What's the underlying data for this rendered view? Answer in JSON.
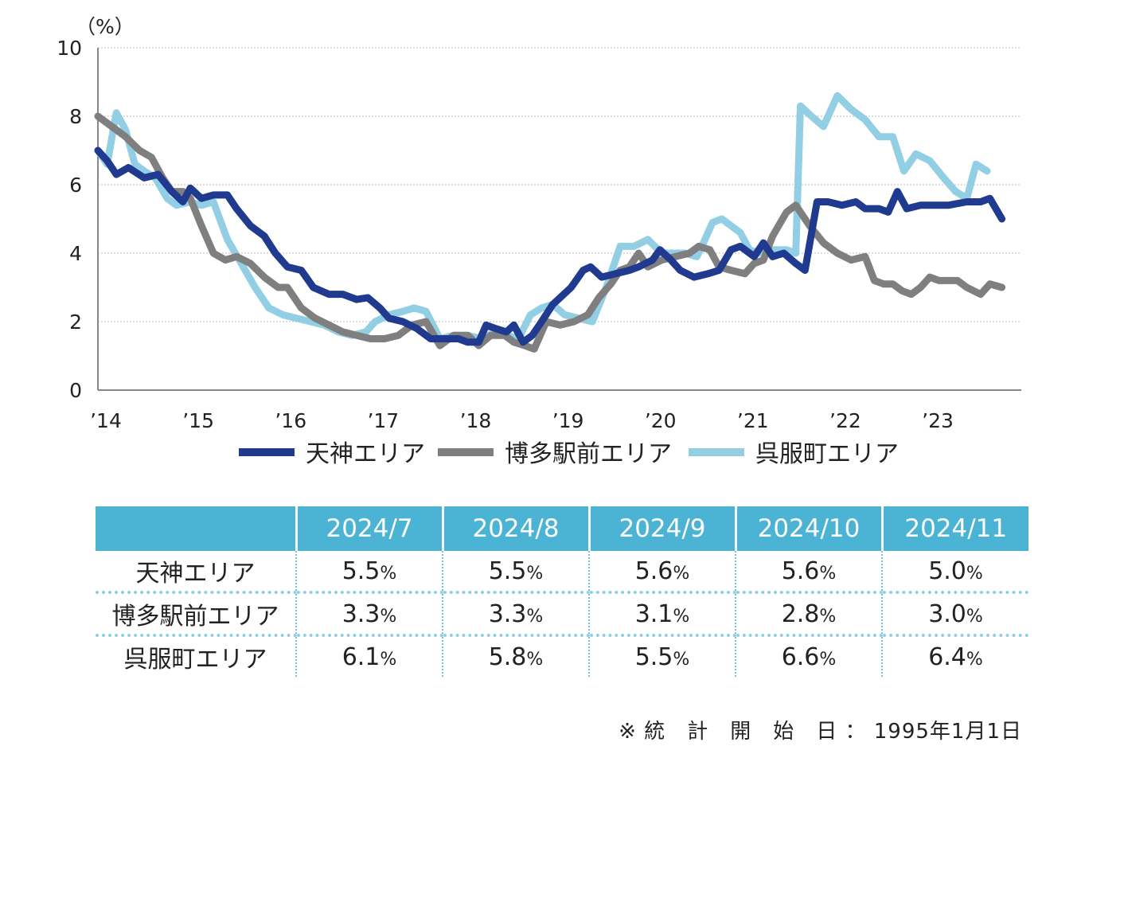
{
  "chart_data": {
    "type": "line",
    "unit_label": "（%）",
    "ylim": [
      0,
      10
    ],
    "yticks": [
      0,
      2,
      4,
      6,
      8,
      10
    ],
    "xlim": [
      2014.0,
      2023.99
    ],
    "xticks": [
      {
        "value": 2014,
        "label": "’14"
      },
      {
        "value": 2015,
        "label": "’15"
      },
      {
        "value": 2016,
        "label": "’16"
      },
      {
        "value": 2017,
        "label": "’17"
      },
      {
        "value": 2018,
        "label": "’18"
      },
      {
        "value": 2019,
        "label": "’19"
      },
      {
        "value": 2020,
        "label": "’20"
      },
      {
        "value": 2021,
        "label": "’21"
      },
      {
        "value": 2022,
        "label": "’22"
      },
      {
        "value": 2023,
        "label": "’23"
      }
    ],
    "grid": true,
    "legend_position": "bottom",
    "series": [
      {
        "name": "天神エリア",
        "color": "#1f3a8f",
        "points": [
          [
            2014.0,
            7.0
          ],
          [
            2014.1,
            6.7
          ],
          [
            2014.2,
            6.3
          ],
          [
            2014.33,
            6.5
          ],
          [
            2014.5,
            6.2
          ],
          [
            2014.65,
            6.3
          ],
          [
            2014.8,
            5.8
          ],
          [
            2014.92,
            5.5
          ],
          [
            2015.0,
            5.9
          ],
          [
            2015.12,
            5.6
          ],
          [
            2015.25,
            5.7
          ],
          [
            2015.4,
            5.7
          ],
          [
            2015.5,
            5.3
          ],
          [
            2015.65,
            4.8
          ],
          [
            2015.8,
            4.5
          ],
          [
            2015.92,
            4.0
          ],
          [
            2016.05,
            3.6
          ],
          [
            2016.2,
            3.5
          ],
          [
            2016.33,
            3.0
          ],
          [
            2016.5,
            2.8
          ],
          [
            2016.65,
            2.8
          ],
          [
            2016.8,
            2.65
          ],
          [
            2016.92,
            2.7
          ],
          [
            2017.05,
            2.4
          ],
          [
            2017.15,
            2.1
          ],
          [
            2017.3,
            2.0
          ],
          [
            2017.45,
            1.8
          ],
          [
            2017.6,
            1.5
          ],
          [
            2017.75,
            1.5
          ],
          [
            2017.9,
            1.5
          ],
          [
            2018.0,
            1.4
          ],
          [
            2018.12,
            1.4
          ],
          [
            2018.2,
            1.9
          ],
          [
            2018.3,
            1.8
          ],
          [
            2018.42,
            1.7
          ],
          [
            2018.5,
            1.9
          ],
          [
            2018.6,
            1.4
          ],
          [
            2018.7,
            1.6
          ],
          [
            2018.8,
            2.0
          ],
          [
            2018.92,
            2.5
          ],
          [
            2019.0,
            2.7
          ],
          [
            2019.12,
            3.0
          ],
          [
            2019.25,
            3.5
          ],
          [
            2019.33,
            3.6
          ],
          [
            2019.45,
            3.3
          ],
          [
            2019.6,
            3.4
          ],
          [
            2019.75,
            3.5
          ],
          [
            2019.85,
            3.6
          ],
          [
            2020.0,
            3.8
          ],
          [
            2020.08,
            4.1
          ],
          [
            2020.2,
            3.8
          ],
          [
            2020.3,
            3.5
          ],
          [
            2020.45,
            3.3
          ],
          [
            2020.6,
            3.4
          ],
          [
            2020.72,
            3.5
          ],
          [
            2020.85,
            4.1
          ],
          [
            2020.95,
            4.2
          ],
          [
            2021.1,
            3.9
          ],
          [
            2021.2,
            4.3
          ],
          [
            2021.3,
            3.9
          ],
          [
            2021.42,
            4.0
          ],
          [
            2021.55,
            3.7
          ],
          [
            2021.65,
            3.5
          ],
          [
            2021.78,
            5.5
          ],
          [
            2021.9,
            5.5
          ],
          [
            2022.05,
            5.4
          ],
          [
            2022.2,
            5.5
          ],
          [
            2022.3,
            5.3
          ],
          [
            2022.45,
            5.3
          ],
          [
            2022.55,
            5.2
          ],
          [
            2022.65,
            5.8
          ],
          [
            2022.75,
            5.3
          ],
          [
            2022.9,
            5.4
          ],
          [
            2023.05,
            5.4
          ],
          [
            2023.2,
            5.4
          ],
          [
            2023.4,
            5.5
          ],
          [
            2023.55,
            5.5
          ],
          [
            2023.65,
            5.6
          ],
          [
            2023.78,
            5.0
          ]
        ]
      },
      {
        "name": "博多駅前エリア",
        "color": "#7f7f7f",
        "points": [
          [
            2014.0,
            8.0
          ],
          [
            2014.15,
            7.7
          ],
          [
            2014.3,
            7.4
          ],
          [
            2014.45,
            7.0
          ],
          [
            2014.58,
            6.8
          ],
          [
            2014.7,
            6.2
          ],
          [
            2014.8,
            5.8
          ],
          [
            2014.92,
            5.8
          ],
          [
            2015.0,
            5.6
          ],
          [
            2015.12,
            4.8
          ],
          [
            2015.25,
            4.0
          ],
          [
            2015.38,
            3.8
          ],
          [
            2015.5,
            3.9
          ],
          [
            2015.65,
            3.7
          ],
          [
            2015.8,
            3.3
          ],
          [
            2015.95,
            3.0
          ],
          [
            2016.05,
            3.0
          ],
          [
            2016.2,
            2.4
          ],
          [
            2016.35,
            2.1
          ],
          [
            2016.5,
            1.9
          ],
          [
            2016.65,
            1.7
          ],
          [
            2016.8,
            1.6
          ],
          [
            2016.95,
            1.5
          ],
          [
            2017.1,
            1.5
          ],
          [
            2017.25,
            1.6
          ],
          [
            2017.4,
            1.9
          ],
          [
            2017.55,
            2.0
          ],
          [
            2017.7,
            1.3
          ],
          [
            2017.85,
            1.6
          ],
          [
            2018.0,
            1.6
          ],
          [
            2018.12,
            1.3
          ],
          [
            2018.25,
            1.6
          ],
          [
            2018.4,
            1.6
          ],
          [
            2018.5,
            1.4
          ],
          [
            2018.62,
            1.3
          ],
          [
            2018.72,
            1.2
          ],
          [
            2018.85,
            2.0
          ],
          [
            2019.0,
            1.9
          ],
          [
            2019.15,
            2.0
          ],
          [
            2019.3,
            2.2
          ],
          [
            2019.42,
            2.7
          ],
          [
            2019.55,
            3.1
          ],
          [
            2019.65,
            3.5
          ],
          [
            2019.75,
            3.6
          ],
          [
            2019.85,
            4.0
          ],
          [
            2019.95,
            3.6
          ],
          [
            2020.1,
            3.8
          ],
          [
            2020.25,
            3.9
          ],
          [
            2020.4,
            4.0
          ],
          [
            2020.5,
            4.2
          ],
          [
            2020.62,
            4.1
          ],
          [
            2020.72,
            3.6
          ],
          [
            2020.85,
            3.5
          ],
          [
            2021.0,
            3.4
          ],
          [
            2021.1,
            3.7
          ],
          [
            2021.2,
            3.8
          ],
          [
            2021.3,
            4.5
          ],
          [
            2021.45,
            5.2
          ],
          [
            2021.55,
            5.4
          ],
          [
            2021.7,
            4.8
          ],
          [
            2021.85,
            4.3
          ],
          [
            2022.0,
            4.0
          ],
          [
            2022.15,
            3.8
          ],
          [
            2022.3,
            3.9
          ],
          [
            2022.4,
            3.2
          ],
          [
            2022.5,
            3.1
          ],
          [
            2022.6,
            3.1
          ],
          [
            2022.7,
            2.9
          ],
          [
            2022.8,
            2.8
          ],
          [
            2022.9,
            3.0
          ],
          [
            2023.0,
            3.3
          ],
          [
            2023.1,
            3.2
          ],
          [
            2023.2,
            3.2
          ],
          [
            2023.3,
            3.2
          ],
          [
            2023.4,
            3.0
          ],
          [
            2023.55,
            2.8
          ],
          [
            2023.65,
            3.1
          ],
          [
            2023.78,
            3.0
          ]
        ]
      },
      {
        "name": "呉服町エリア",
        "color": "#93cfe4",
        "points": [
          [
            2014.0,
            7.0
          ],
          [
            2014.1,
            6.6
          ],
          [
            2014.2,
            8.1
          ],
          [
            2014.3,
            7.6
          ],
          [
            2014.4,
            6.6
          ],
          [
            2014.5,
            6.4
          ],
          [
            2014.62,
            6.2
          ],
          [
            2014.75,
            5.6
          ],
          [
            2014.85,
            5.4
          ],
          [
            2015.0,
            5.5
          ],
          [
            2015.12,
            5.4
          ],
          [
            2015.25,
            5.5
          ],
          [
            2015.4,
            4.4
          ],
          [
            2015.55,
            3.7
          ],
          [
            2015.7,
            3.0
          ],
          [
            2015.85,
            2.4
          ],
          [
            2016.0,
            2.2
          ],
          [
            2016.15,
            2.1
          ],
          [
            2016.3,
            2.0
          ],
          [
            2016.45,
            1.9
          ],
          [
            2016.6,
            1.7
          ],
          [
            2016.75,
            1.6
          ],
          [
            2016.9,
            1.7
          ],
          [
            2017.0,
            2.0
          ],
          [
            2017.15,
            2.2
          ],
          [
            2017.3,
            2.3
          ],
          [
            2017.42,
            2.4
          ],
          [
            2017.55,
            2.3
          ],
          [
            2017.7,
            1.5
          ],
          [
            2017.85,
            1.6
          ],
          [
            2018.0,
            1.6
          ],
          [
            2018.15,
            1.5
          ],
          [
            2018.3,
            1.7
          ],
          [
            2018.42,
            1.6
          ],
          [
            2018.55,
            1.5
          ],
          [
            2018.68,
            2.2
          ],
          [
            2018.8,
            2.4
          ],
          [
            2018.92,
            2.5
          ],
          [
            2019.05,
            2.2
          ],
          [
            2019.2,
            2.1
          ],
          [
            2019.35,
            2.0
          ],
          [
            2019.5,
            3.0
          ],
          [
            2019.65,
            4.2
          ],
          [
            2019.8,
            4.2
          ],
          [
            2019.95,
            4.4
          ],
          [
            2020.1,
            4.0
          ],
          [
            2020.22,
            4.0
          ],
          [
            2020.35,
            4.0
          ],
          [
            2020.48,
            3.9
          ],
          [
            2020.55,
            4.3
          ],
          [
            2020.65,
            4.9
          ],
          [
            2020.75,
            5.0
          ],
          [
            2020.85,
            4.8
          ],
          [
            2020.95,
            4.6
          ],
          [
            2021.05,
            4.1
          ],
          [
            2021.15,
            4.0
          ],
          [
            2021.25,
            4.1
          ],
          [
            2021.35,
            4.1
          ],
          [
            2021.45,
            4.1
          ],
          [
            2021.55,
            4.0
          ],
          [
            2021.6,
            8.3
          ],
          [
            2021.72,
            8.0
          ],
          [
            2021.85,
            7.7
          ],
          [
            2022.0,
            8.6
          ],
          [
            2022.15,
            8.2
          ],
          [
            2022.3,
            7.9
          ],
          [
            2022.45,
            7.4
          ],
          [
            2022.6,
            7.4
          ],
          [
            2022.72,
            6.4
          ],
          [
            2022.85,
            6.9
          ],
          [
            2023.0,
            6.7
          ],
          [
            2023.15,
            6.2
          ],
          [
            2023.28,
            5.8
          ],
          [
            2023.4,
            5.6
          ],
          [
            2023.5,
            6.6
          ],
          [
            2023.62,
            6.4
          ]
        ]
      }
    ],
    "table": {
      "columns": [
        "2024/7",
        "2024/8",
        "2024/9",
        "2024/10",
        "2024/11"
      ],
      "rows": [
        {
          "label": "天神エリア",
          "values": [
            "5.5",
            "5.5",
            "5.6",
            "5.6",
            "5.0"
          ]
        },
        {
          "label": "博多駅前エリア",
          "values": [
            "3.3",
            "3.3",
            "3.1",
            "2.8",
            "3.0"
          ]
        },
        {
          "label": "呉服町エリア",
          "values": [
            "6.1",
            "5.8",
            "5.5",
            "6.6",
            "6.4"
          ]
        }
      ],
      "unit": "%"
    }
  },
  "footnote": "※ 統　計　開　始　日 ： 1995年1月1日"
}
